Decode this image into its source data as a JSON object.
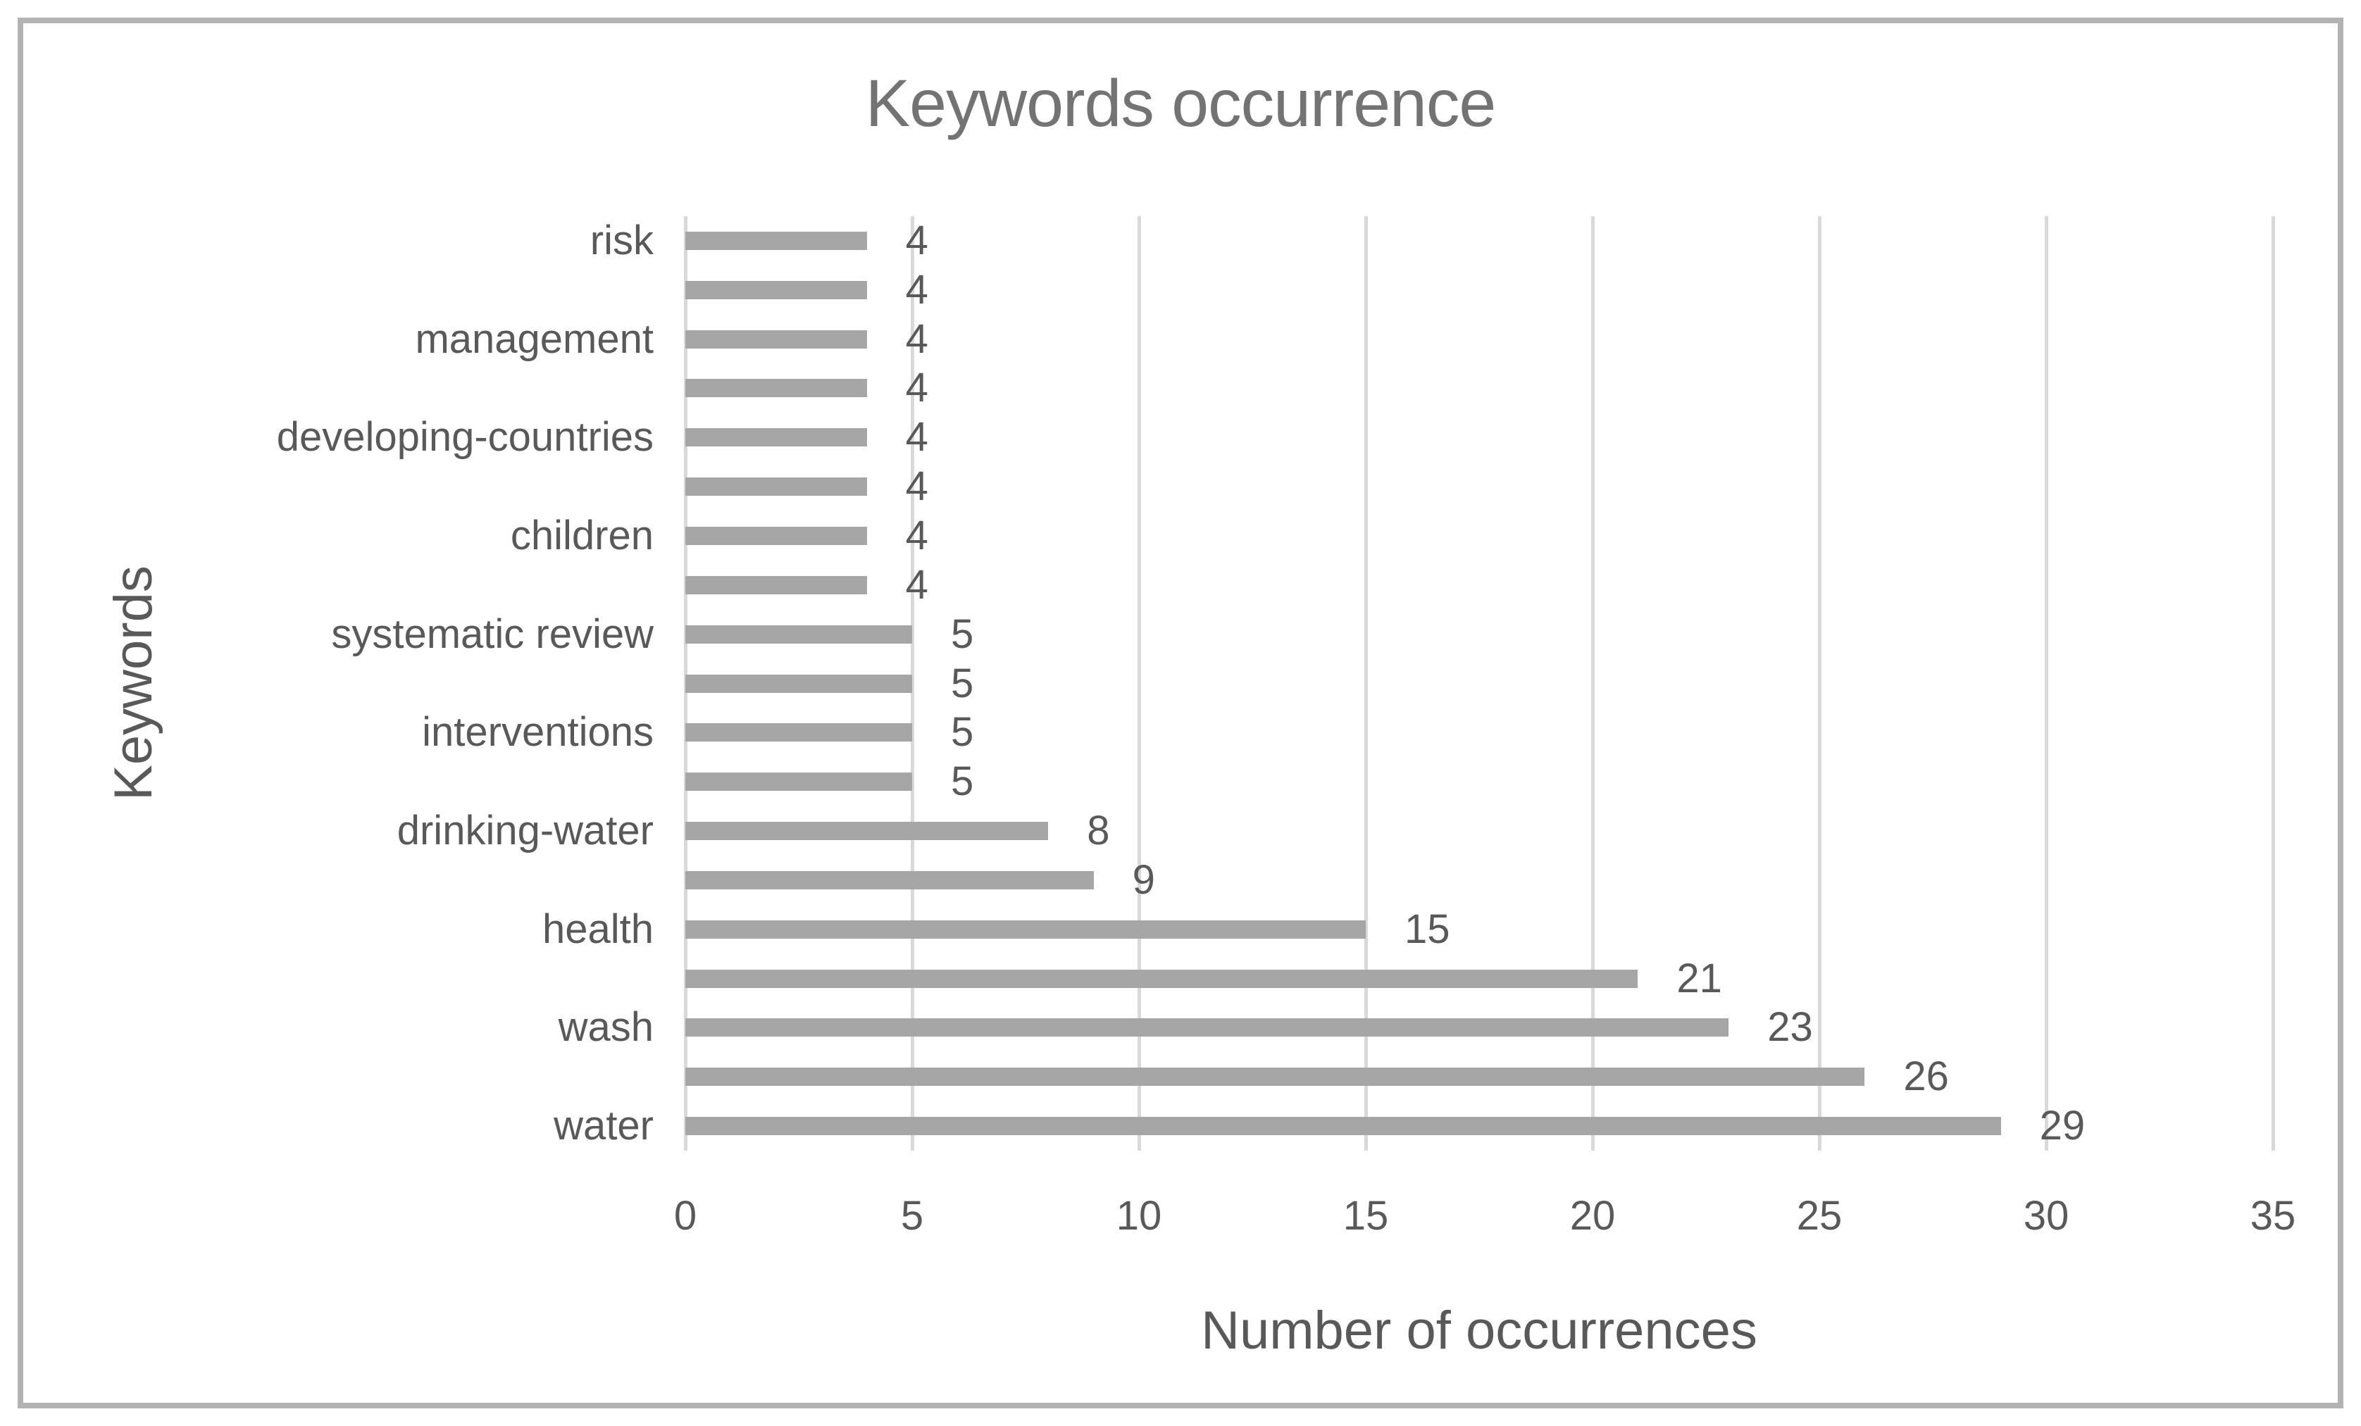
{
  "chart_data": {
    "type": "bar",
    "orientation": "horizontal",
    "title": "Keywords occurrence",
    "xlabel": "Number of occurrences",
    "ylabel": "Keywords",
    "xlim": [
      0,
      35
    ],
    "xticks": [
      0,
      5,
      10,
      15,
      20,
      25,
      30,
      35
    ],
    "grid": true,
    "legend": false,
    "categories": [
      "risk",
      "",
      "management",
      "",
      "developing-countries",
      "",
      "children",
      "",
      "systematic review",
      "",
      "interventions",
      "",
      "drinking-water",
      "",
      "health",
      "",
      "wash",
      "",
      "water"
    ],
    "values": [
      4,
      4,
      4,
      4,
      4,
      4,
      4,
      4,
      5,
      5,
      5,
      5,
      8,
      9,
      15,
      21,
      23,
      26,
      29
    ],
    "data_labels_shown": true,
    "colors": {
      "bar": "#a6a6a6",
      "gridline": "#d9d9d9",
      "axis_text": "#595959",
      "title_text": "#737373",
      "frame_border": "#b3b3b3",
      "background": "#ffffff"
    }
  }
}
